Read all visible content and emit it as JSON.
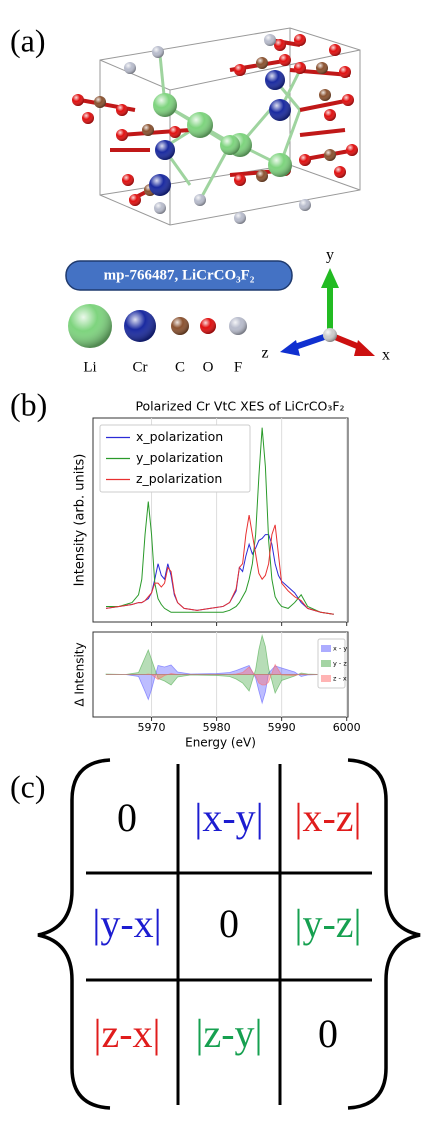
{
  "panel_a": {
    "label": "(a)",
    "badge": "mp-766487, LiCrCO₃F₂",
    "atoms": [
      {
        "symbol": "Li",
        "color": "#7ed47e"
      },
      {
        "symbol": "Cr",
        "color": "#1a2aa0"
      },
      {
        "symbol": "C",
        "color": "#8a5230"
      },
      {
        "symbol": "O",
        "color": "#e01010"
      },
      {
        "symbol": "F",
        "color": "#b8bccc"
      }
    ],
    "axes": [
      "y",
      "z",
      "x"
    ]
  },
  "panel_b": {
    "label": "(b)"
  },
  "chart_data": [
    {
      "type": "line",
      "title": "Polarized Cr VtC XES of LiCrCO₃F₂",
      "y_label": "Intensity (arb. units)",
      "x": [
        5963,
        5965,
        5967,
        5968,
        5968.5,
        5969,
        5969.5,
        5970,
        5970.5,
        5971,
        5971.5,
        5972,
        5972.5,
        5973,
        5973.5,
        5974,
        5975,
        5977,
        5979,
        5981,
        5982,
        5983,
        5983.5,
        5984,
        5984.5,
        5985,
        5985.5,
        5986,
        5986.5,
        5987,
        5987.5,
        5988,
        5988.5,
        5989,
        5989.5,
        5990,
        5991,
        5992,
        5993,
        5994,
        5996,
        5998
      ],
      "series": [
        {
          "name": "x_polarization",
          "color": "#2b2bd6",
          "values": [
            0.07,
            0.08,
            0.09,
            0.1,
            0.1,
            0.11,
            0.12,
            0.15,
            0.22,
            0.3,
            0.24,
            0.22,
            0.3,
            0.24,
            0.14,
            0.1,
            0.07,
            0.06,
            0.07,
            0.08,
            0.1,
            0.16,
            0.28,
            0.26,
            0.34,
            0.4,
            0.35,
            0.38,
            0.42,
            0.43,
            0.45,
            0.45,
            0.4,
            0.3,
            0.24,
            0.21,
            0.18,
            0.15,
            0.1,
            0.07,
            0.05,
            0.04
          ]
        },
        {
          "name": "y_polarization",
          "color": "#2a9a2a",
          "values": [
            0.08,
            0.08,
            0.1,
            0.14,
            0.22,
            0.45,
            0.62,
            0.45,
            0.2,
            0.12,
            0.09,
            0.07,
            0.06,
            0.05,
            0.05,
            0.05,
            0.05,
            0.05,
            0.05,
            0.05,
            0.06,
            0.08,
            0.1,
            0.13,
            0.16,
            0.22,
            0.3,
            0.45,
            0.75,
            1.0,
            0.8,
            0.42,
            0.22,
            0.13,
            0.1,
            0.08,
            0.07,
            0.1,
            0.14,
            0.08,
            0.05,
            0.04
          ]
        },
        {
          "name": "z_polarization",
          "color": "#e83030",
          "values": [
            0.07,
            0.08,
            0.09,
            0.1,
            0.1,
            0.11,
            0.13,
            0.15,
            0.2,
            0.2,
            0.18,
            0.2,
            0.28,
            0.26,
            0.15,
            0.1,
            0.07,
            0.06,
            0.07,
            0.08,
            0.1,
            0.17,
            0.28,
            0.3,
            0.45,
            0.55,
            0.45,
            0.35,
            0.25,
            0.22,
            0.24,
            0.3,
            0.45,
            0.5,
            0.35,
            0.2,
            0.16,
            0.13,
            0.11,
            0.07,
            0.05,
            0.04
          ]
        }
      ],
      "xlim": [
        5961,
        6000.2
      ],
      "ylim": [
        0,
        1.05
      ],
      "xticks": [
        5970,
        5980,
        5990,
        6000
      ],
      "grid": true,
      "legend": "upper left"
    },
    {
      "type": "area",
      "y_label": "Δ Intensity",
      "x_label": "Energy (eV)",
      "x": [
        5963,
        5966,
        5968,
        5969,
        5969.5,
        5970,
        5971,
        5972,
        5973,
        5974,
        5976,
        5980,
        5982,
        5983,
        5984,
        5985,
        5986,
        5986.5,
        5987,
        5987.5,
        5988,
        5989,
        5990,
        5992,
        5993,
        5994,
        5996,
        5998
      ],
      "series": [
        {
          "name": "x - y",
          "color": "#5a5aff",
          "values": [
            0,
            0,
            -0.04,
            -0.34,
            -0.5,
            -0.3,
            0.18,
            0.15,
            0.19,
            0.05,
            0.01,
            0.02,
            0.04,
            0.08,
            0.13,
            0.18,
            -0.07,
            -0.33,
            -0.57,
            -0.35,
            0.03,
            0.17,
            0.13,
            0.05,
            -0.04,
            -0.01,
            0,
            0
          ]
        },
        {
          "name": "y - z",
          "color": "#4aaa4a",
          "values": [
            0.01,
            0,
            0.04,
            0.34,
            0.49,
            0.3,
            -0.08,
            -0.13,
            -0.21,
            -0.05,
            -0.01,
            -0.02,
            -0.04,
            -0.09,
            -0.17,
            -0.33,
            0.1,
            0.5,
            0.78,
            0.56,
            0.12,
            -0.37,
            -0.12,
            -0.03,
            0.03,
            0.01,
            0,
            0
          ]
        },
        {
          "name": "z - x",
          "color": "#ff6a6a",
          "values": [
            0,
            0,
            0,
            0,
            0.01,
            0,
            -0.1,
            -0.02,
            0.02,
            0,
            0,
            0,
            0,
            0.01,
            0.04,
            0.15,
            -0.03,
            -0.17,
            -0.21,
            -0.21,
            -0.15,
            0.2,
            -0.01,
            -0.02,
            0.01,
            0,
            0,
            0
          ]
        }
      ],
      "xlim": [
        5961,
        6000.2
      ],
      "ylim": [
        -0.85,
        0.85
      ],
      "xticks": [
        5970,
        5980,
        5990,
        6000
      ],
      "grid": true,
      "legend": "upper right"
    }
  ],
  "panel_c": {
    "label": "(c)",
    "rows": [
      [
        {
          "text": "0",
          "color": "#000000"
        },
        {
          "text": "|x-y|",
          "color": "#1c1cd0"
        },
        {
          "text": "|x-z|",
          "color": "#e01c1c"
        }
      ],
      [
        {
          "text": "|y-x|",
          "color": "#1c1cd0"
        },
        {
          "text": "0",
          "color": "#000000"
        },
        {
          "text": "|y-z|",
          "color": "#16a050"
        }
      ],
      [
        {
          "text": "|z-x|",
          "color": "#e01c1c"
        },
        {
          "text": "|z-y|",
          "color": "#16a050"
        },
        {
          "text": "0",
          "color": "#000000"
        }
      ]
    ]
  }
}
